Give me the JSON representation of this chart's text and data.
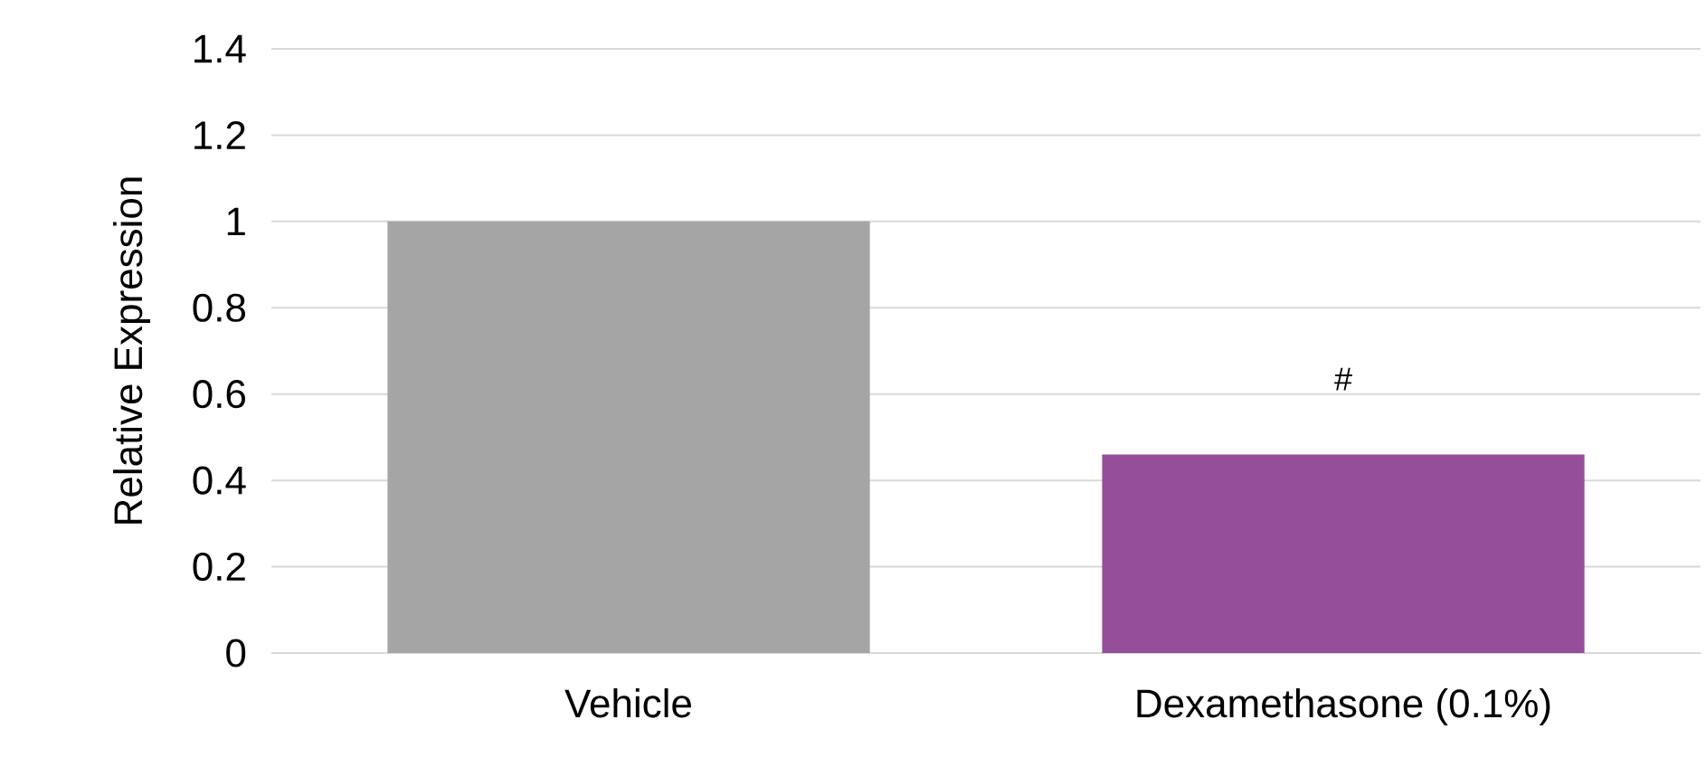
{
  "chart_data": {
    "type": "bar",
    "ylabel": "Relative Expression",
    "categories": [
      "Vehicle",
      "Dexamethasone (0.1%)"
    ],
    "values": [
      1,
      0.46
    ],
    "colors": [
      "#a5a5a5",
      "#954f9a"
    ],
    "ylim": [
      0,
      1.4
    ],
    "yticks": [
      0,
      0.2,
      0.4,
      0.6,
      0.8,
      1,
      1.2,
      1.4
    ],
    "grid": "y",
    "annotations": [
      {
        "text": "#",
        "x": "Dexamethasone (0.1%)",
        "y": 0.46
      }
    ]
  }
}
